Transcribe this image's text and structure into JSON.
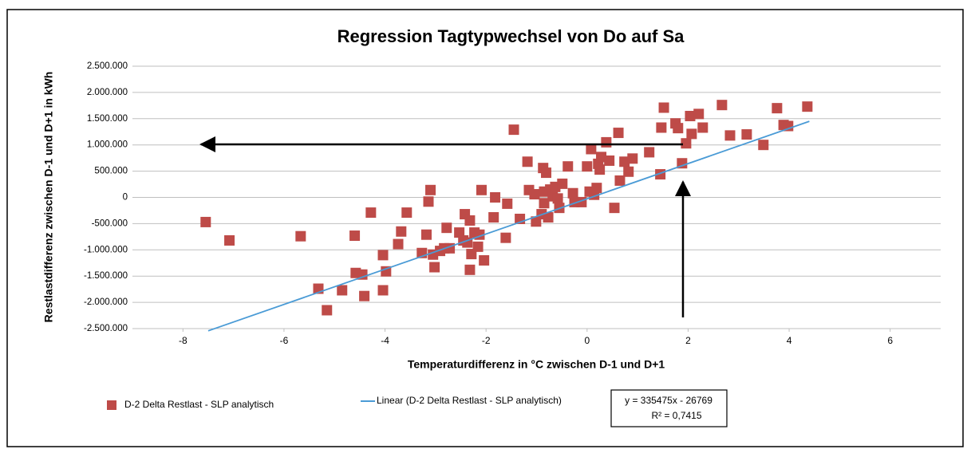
{
  "chart_data": {
    "type": "scatter",
    "title": "Regression Tagtypwechsel von Do auf Sa",
    "x_label": "Temperaturdifferenz in °C zwischen D-1 und D+1",
    "y_label": "Restlastdifferenz zwischen D-1 und D+1 in kWh",
    "series": [
      {
        "name": "D-2 Delta Restlast - SLP analytisch",
        "color": "#be4b48",
        "x": [
          -7.55,
          -7.08,
          -5.67,
          -5.32,
          -5.15,
          -4.85,
          -4.6,
          -4.58,
          -4.45,
          -4.41,
          -4.28,
          -4.04,
          -4.04,
          -3.98,
          -3.74,
          -3.68,
          -3.57,
          -3.27,
          -3.18,
          -3.14,
          -3.1,
          -3.05,
          -3.02,
          -2.91,
          -2.83,
          -2.78,
          -2.72,
          -2.53,
          -2.45,
          -2.42,
          -2.37,
          -2.32,
          -2.32,
          -2.29,
          -2.23,
          -2.16,
          -2.13,
          -2.09,
          -2.04,
          -1.85,
          -1.82,
          -1.61,
          -1.58,
          -1.45,
          -1.33,
          -1.18,
          -1.15,
          -1.04,
          -1.01,
          -0.9,
          -0.87,
          -0.85,
          -0.85,
          -0.81,
          -0.77,
          -0.73,
          -0.68,
          -0.63,
          -0.58,
          -0.55,
          -0.49,
          -0.38,
          -0.28,
          -0.25,
          -0.11,
          0,
          0.05,
          0.08,
          0.14,
          0.19,
          0.22,
          0.25,
          0.28,
          0.38,
          0.44,
          0.54,
          0.62,
          0.65,
          0.74,
          0.82,
          0.9,
          1.23,
          1.45,
          1.47,
          1.52,
          1.75,
          1.8,
          1.88,
          1.96,
          2.04,
          2.07,
          2.21,
          2.29,
          2.67,
          2.83,
          3.16,
          3.49,
          3.76,
          3.89,
          3.98,
          4.36
        ],
        "values": [
          -470000,
          -820000,
          -740000,
          -1740000,
          -2150000,
          -1770000,
          -730000,
          -1440000,
          -1470000,
          -1880000,
          -290000,
          -1100000,
          -1770000,
          -1410000,
          -890000,
          -650000,
          -290000,
          -1060000,
          -710000,
          -80000,
          140000,
          -1090000,
          -1330000,
          -1020000,
          -970000,
          -580000,
          -970000,
          -670000,
          -820000,
          -320000,
          -860000,
          -440000,
          -1380000,
          -1080000,
          -670000,
          -940000,
          -710000,
          140000,
          -1200000,
          -380000,
          0,
          -770000,
          -120000,
          1290000,
          -410000,
          680000,
          140000,
          60000,
          -460000,
          -320000,
          560000,
          -110000,
          110000,
          470000,
          -380000,
          150000,
          20000,
          200000,
          -20000,
          -200000,
          260000,
          590000,
          80000,
          -90000,
          -90000,
          590000,
          110000,
          920000,
          50000,
          180000,
          640000,
          530000,
          770000,
          1050000,
          700000,
          -200000,
          1230000,
          320000,
          680000,
          490000,
          740000,
          860000,
          440000,
          1330000,
          1710000,
          1410000,
          1320000,
          650000,
          1030000,
          1550000,
          1210000,
          1590000,
          1330000,
          1760000,
          1180000,
          1200000,
          1000000,
          1700000,
          1380000,
          1360000,
          1730000
        ]
      }
    ],
    "trendline": {
      "name": "Linear (D-2 Delta Restlast - SLP analytisch)",
      "color": "#4a9bd6",
      "slope": 335475,
      "intercept": -26769,
      "x": [
        -7.5,
        4.4
      ]
    },
    "annotation": [
      "y = 335475x - 26769",
      "R² = 0,7415"
    ],
    "xlim": [
      -9,
      7
    ],
    "xticks": [
      -8,
      -6,
      -4,
      -2,
      0,
      2,
      4,
      6
    ],
    "ylim": [
      -2500000,
      2500000
    ],
    "yticks": [
      {
        "value": 2500000,
        "label": "2.500.000"
      },
      {
        "value": 2000000,
        "label": "2.000.000"
      },
      {
        "value": 1500000,
        "label": "1.500.000"
      },
      {
        "value": 1000000,
        "label": "1.000.000"
      },
      {
        "value": 500000,
        "label": "500.000"
      },
      0,
      {
        "value": -500000,
        "label": "-500.000"
      },
      {
        "value": -1000000,
        "label": "-1.000.000"
      },
      {
        "value": -1500000,
        "label": "-1.500.000"
      },
      {
        "value": -2000000,
        "label": "-2.000.000"
      },
      {
        "value": -2500000,
        "label": "-2.500.000"
      }
    ],
    "grid": true,
    "legend": "bottom"
  }
}
